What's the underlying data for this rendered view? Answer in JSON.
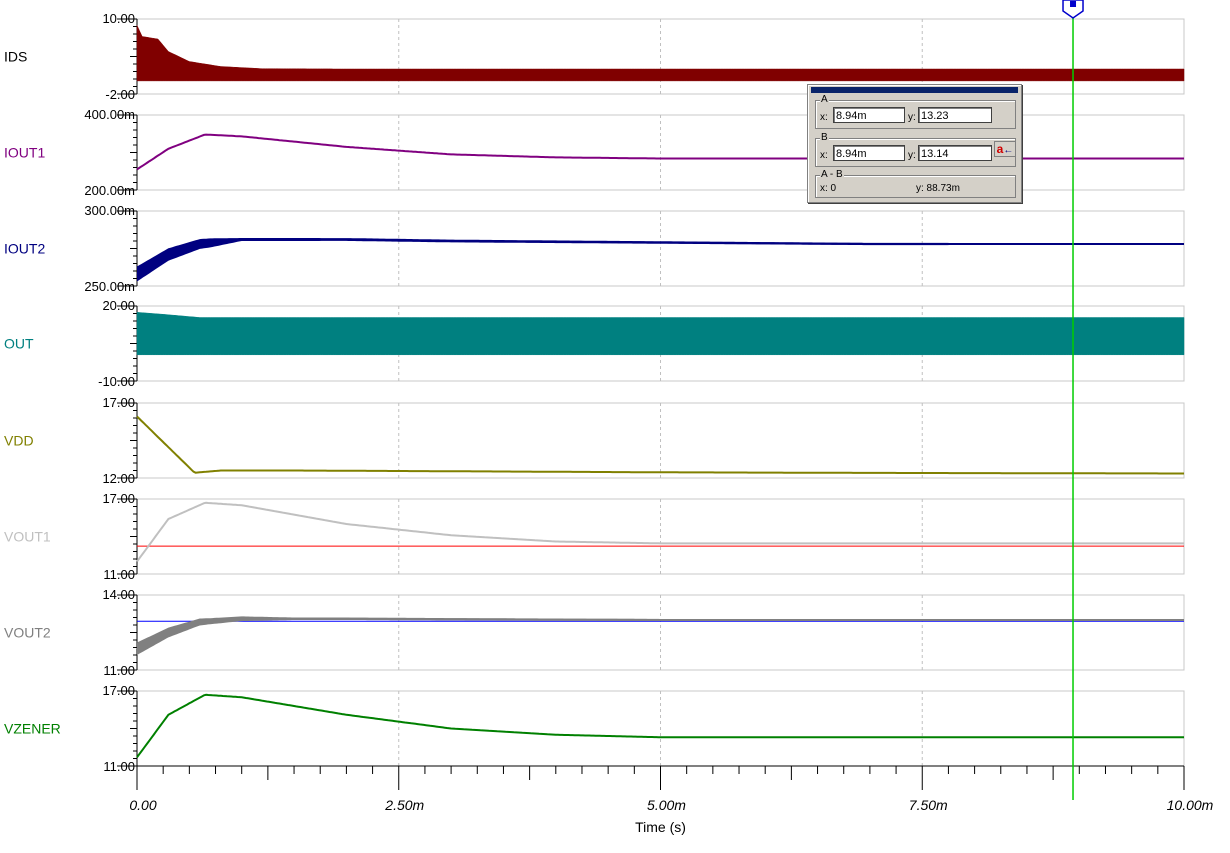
{
  "chart_data": {
    "type": "line",
    "xlabel": "Time (s)",
    "x_ticks": [
      "0.00",
      "2.50m",
      "5.00m",
      "7.50m",
      "10.00m"
    ],
    "xlim": [
      0,
      10
    ],
    "x_unit": "ms",
    "grid": true,
    "panels": [
      {
        "name": "IDS",
        "color": "#800000",
        "ylim": [
          -2,
          10
        ],
        "ytick_top": "10.00",
        "ytick_bottom": "-2.00",
        "style": "band",
        "upper": [
          [
            0,
            9
          ],
          [
            0.05,
            7.2
          ],
          [
            0.2,
            6.8
          ],
          [
            0.3,
            4.8
          ],
          [
            0.5,
            3.2
          ],
          [
            0.8,
            2.4
          ],
          [
            1.2,
            2.05
          ],
          [
            2,
            2.0
          ],
          [
            10,
            2.0
          ]
        ],
        "lower": [
          [
            0,
            0.1
          ],
          [
            10,
            0.1
          ]
        ]
      },
      {
        "name": "IOUT1",
        "color": "#800080",
        "ylim": [
          200,
          400
        ],
        "ytick_top": "400.00m",
        "ytick_bottom": "200.00m",
        "style": "line",
        "points": [
          [
            0,
            255
          ],
          [
            0.3,
            310
          ],
          [
            0.65,
            348
          ],
          [
            1.0,
            343
          ],
          [
            2.0,
            315
          ],
          [
            3.0,
            295
          ],
          [
            4.0,
            287
          ],
          [
            5.0,
            284
          ],
          [
            6.0,
            284
          ],
          [
            8.0,
            284
          ],
          [
            10,
            284
          ]
        ]
      },
      {
        "name": "IOUT2",
        "color": "#000080",
        "ylim": [
          250,
          300
        ],
        "ytick_top": "300.00m",
        "ytick_bottom": "250.00m",
        "style": "noisyline",
        "points": [
          [
            0,
            258
          ],
          [
            0.3,
            271
          ],
          [
            0.6,
            278
          ],
          [
            1.0,
            281
          ],
          [
            2.0,
            281
          ],
          [
            3.0,
            280
          ],
          [
            5.0,
            279
          ],
          [
            7.0,
            278
          ],
          [
            10,
            278
          ]
        ],
        "noise": [
          [
            0,
            5
          ],
          [
            0.7,
            3
          ],
          [
            1.0,
            1
          ],
          [
            10,
            0.6
          ]
        ]
      },
      {
        "name": "OUT",
        "color": "#008080",
        "ylim": [
          -10,
          20
        ],
        "ytick_top": "20.00",
        "ytick_bottom": "-10.00",
        "style": "band",
        "upper": [
          [
            0,
            17.5
          ],
          [
            0.3,
            16.5
          ],
          [
            0.6,
            15.4
          ],
          [
            10,
            15.4
          ]
        ],
        "lower": [
          [
            0,
            0.5
          ],
          [
            10,
            0.5
          ]
        ]
      },
      {
        "name": "VDD",
        "color": "#808000",
        "ylim": [
          12,
          17
        ],
        "ytick_top": "17.00",
        "ytick_bottom": "12.00",
        "style": "line",
        "points": [
          [
            0,
            16.1
          ],
          [
            0.55,
            12.35
          ],
          [
            0.8,
            12.5
          ],
          [
            1.5,
            12.5
          ],
          [
            3.0,
            12.45
          ],
          [
            5.0,
            12.38
          ],
          [
            7.0,
            12.34
          ],
          [
            10,
            12.3
          ]
        ]
      },
      {
        "name": "VOUT1",
        "color": "#c0c0c0",
        "ylim": [
          11,
          17
        ],
        "ytick_top": "17.00",
        "ytick_bottom": "11.00",
        "style": "line",
        "points": [
          [
            0,
            12.0
          ],
          [
            0.3,
            15.4
          ],
          [
            0.65,
            16.7
          ],
          [
            1.0,
            16.5
          ],
          [
            2.0,
            15.0
          ],
          [
            3.0,
            14.1
          ],
          [
            4.0,
            13.6
          ],
          [
            5.0,
            13.45
          ],
          [
            7.0,
            13.45
          ],
          [
            10,
            13.45
          ]
        ],
        "ref": {
          "value": 13.23,
          "color": "#ff0000"
        }
      },
      {
        "name": "VOUT2",
        "color": "#808080",
        "ylim": [
          11,
          14
        ],
        "ytick_top": "14.00",
        "ytick_bottom": "11.00",
        "style": "noisyline",
        "points": [
          [
            0,
            11.85
          ],
          [
            0.3,
            12.5
          ],
          [
            0.6,
            12.92
          ],
          [
            1.0,
            13.05
          ],
          [
            2.0,
            13.05
          ],
          [
            3.0,
            13.03
          ],
          [
            5.0,
            13.0
          ],
          [
            10,
            13.0
          ]
        ],
        "noise": [
          [
            0,
            0.25
          ],
          [
            0.7,
            0.12
          ],
          [
            1.5,
            0.05
          ],
          [
            10,
            0.03
          ]
        ],
        "ref": {
          "value": 12.95,
          "color": "#0000ff"
        }
      },
      {
        "name": "VZENER",
        "color": "#008000",
        "ylim": [
          11,
          17
        ],
        "ytick_top": "17.00",
        "ytick_bottom": "11.00",
        "style": "line",
        "points": [
          [
            0,
            11.7
          ],
          [
            0.3,
            15.1
          ],
          [
            0.65,
            16.7
          ],
          [
            1.0,
            16.5
          ],
          [
            2.0,
            15.1
          ],
          [
            3.0,
            14.0
          ],
          [
            4.0,
            13.5
          ],
          [
            5.0,
            13.3
          ],
          [
            7.0,
            13.3
          ],
          [
            10,
            13.3
          ]
        ]
      }
    ],
    "cursor": {
      "x": 8.94,
      "color": "#00cc00",
      "marker_color": "#0000cc"
    }
  },
  "cursor_box": {
    "a_label": "A",
    "a_x": "8.94m",
    "a_y": "13.23",
    "b_label": "B",
    "b_x": "8.94m",
    "b_y": "13.14",
    "diff_label": "A - B",
    "diff_x": "x: 0",
    "diff_y": "y: 88.73m",
    "x_prefix": "x:",
    "y_prefix": "y:",
    "button_letter": "a"
  }
}
